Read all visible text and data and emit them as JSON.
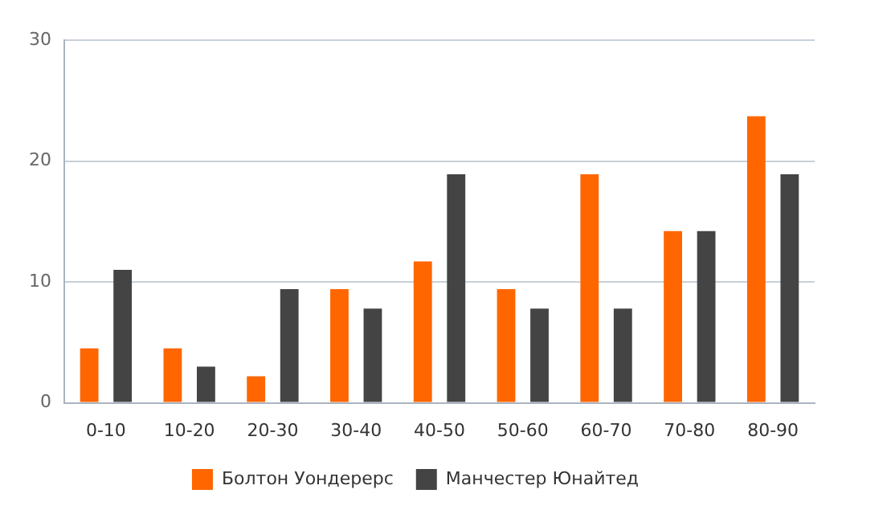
{
  "chart_data": {
    "type": "bar",
    "categories": [
      "0-10",
      "10-20",
      "20-30",
      "30-40",
      "40-50",
      "50-60",
      "60-70",
      "70-80",
      "80-90"
    ],
    "series": [
      {
        "name": "Болтон Уондерерс",
        "color": "#ff6600",
        "values": [
          4.5,
          4.5,
          2.2,
          9.4,
          11.7,
          9.4,
          18.9,
          14.2,
          23.7
        ]
      },
      {
        "name": "Манчестер Юнайтед",
        "color": "#444444",
        "values": [
          11,
          3,
          9.4,
          7.8,
          18.9,
          7.8,
          7.8,
          14.2,
          18.9
        ]
      }
    ],
    "ylim": [
      0,
      30
    ],
    "yticks": [
      0,
      10,
      20,
      30
    ],
    "grid": "y",
    "legend": "bottom"
  }
}
